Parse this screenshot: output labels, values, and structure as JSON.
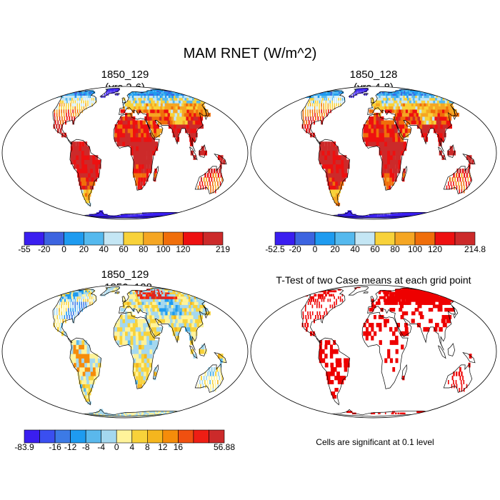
{
  "title": "MAM RNET (W/m^2)",
  "note": "Cells are significant at 0.1 level",
  "colors": {
    "ocean": "#ffffff",
    "coast": "#000000",
    "abs_scale": [
      "#3a1ef0",
      "#3c64e0",
      "#1e9bf0",
      "#55b9ee",
      "#c4e6f4",
      "#f8d23a",
      "#f5a623",
      "#f06e0a",
      "#ee1010",
      "#cc2a2a"
    ],
    "diff_scale": [
      "#3a1ef0",
      "#3a4ff0",
      "#3c7ae6",
      "#1e9bf0",
      "#5ab8ec",
      "#a4d8ef",
      "#fff39a",
      "#f8d23a",
      "#f5b61e",
      "#f58c0a",
      "#f05010",
      "#ee1e14",
      "#cc2a2a"
    ],
    "sig": "#ee0000"
  },
  "chart_data": [
    {
      "type": "heatmap",
      "title_line1": "1850_129",
      "title_line2": "(yrs 2-6)",
      "colorbar": {
        "labels": [
          "-55",
          "-20",
          "0",
          "20",
          "40",
          "60",
          "80",
          "100",
          "120",
          "219"
        ],
        "bins": 10
      }
    },
    {
      "type": "heatmap",
      "title_line1": "1850_128",
      "title_line2": "(yrs 4-8)",
      "colorbar": {
        "labels": [
          "-52.5",
          "-20",
          "0",
          "20",
          "40",
          "60",
          "80",
          "100",
          "120",
          "214.8"
        ],
        "bins": 10
      }
    },
    {
      "type": "heatmap",
      "title_line1": "1850_129",
      "title_line2": "- 1850_128",
      "colorbar": {
        "labels": [
          "-83.9",
          "",
          "-16",
          "-12",
          "-8",
          "-4",
          "0",
          "4",
          "8",
          "12",
          "16",
          "",
          "56.88"
        ],
        "bins": 13
      }
    },
    {
      "type": "heatmap",
      "title_line1": "T-Test of two Case means at each grid point",
      "title_line2": ""
    }
  ]
}
